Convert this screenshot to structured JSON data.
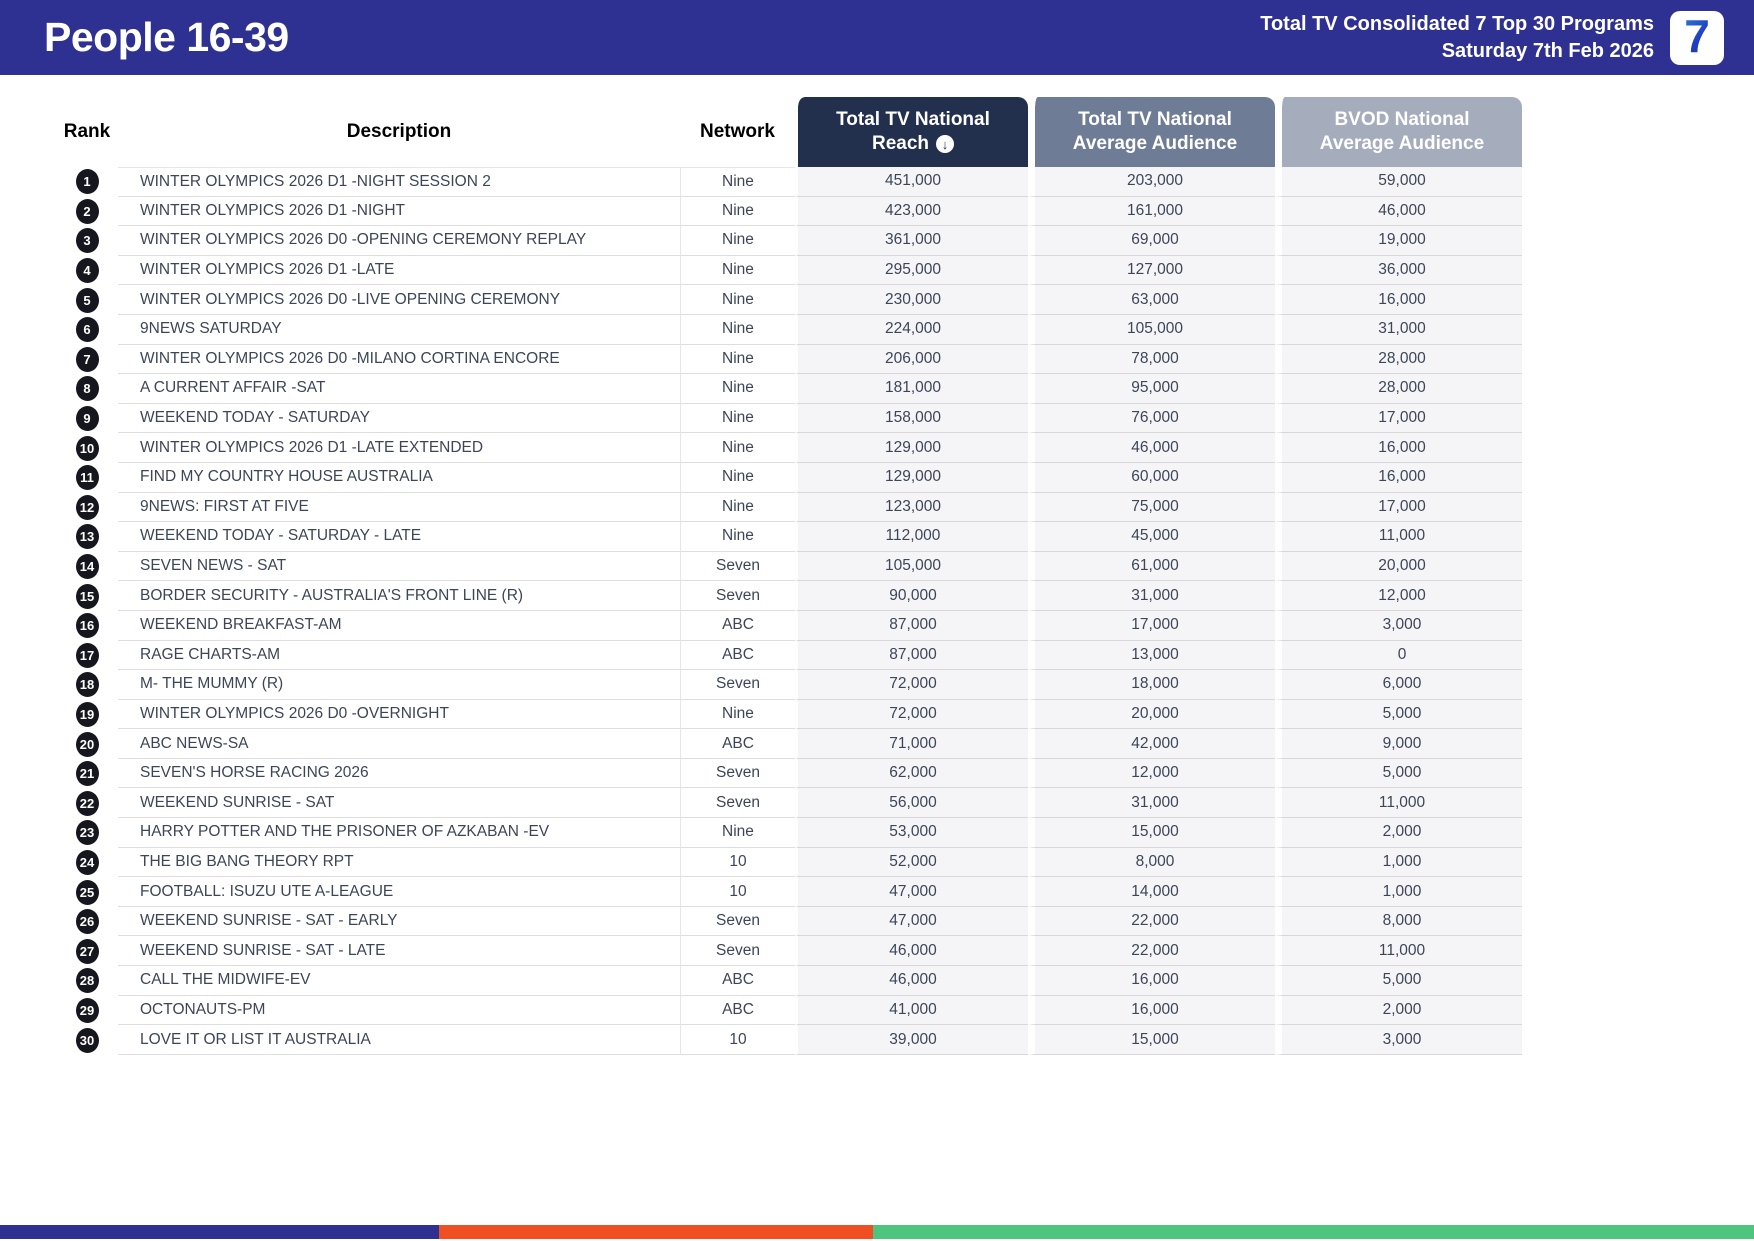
{
  "header": {
    "title": "People 16-39",
    "subtitle_line1": "Total TV Consolidated 7 Top 30 Programs",
    "subtitle_line2": "Saturday 7th Feb 2026",
    "logo_glyph": "7",
    "bg_color": "#2E3192"
  },
  "table": {
    "columns": {
      "rank": "Rank",
      "description": "Description",
      "network": "Network",
      "reach_line1": "Total TV National",
      "reach_line2": "Reach",
      "avg_line1": "Total TV National",
      "avg_line2": "Average Audience",
      "bvod_line1": "BVOD National",
      "bvod_line2": "Average Audience"
    },
    "sort_icon_glyph": "↓",
    "header_colors": {
      "reach": "#22304E",
      "avg": "#6E7C95",
      "bvod": "#A5ADBD"
    },
    "rows": [
      {
        "rank": "1",
        "description": "WINTER OLYMPICS 2026 D1 -NIGHT SESSION 2",
        "network": "Nine",
        "reach": "451,000",
        "avg": "203,000",
        "bvod": "59,000"
      },
      {
        "rank": "2",
        "description": "WINTER OLYMPICS 2026 D1 -NIGHT",
        "network": "Nine",
        "reach": "423,000",
        "avg": "161,000",
        "bvod": "46,000"
      },
      {
        "rank": "3",
        "description": "WINTER OLYMPICS 2026 D0 -OPENING CEREMONY REPLAY",
        "network": "Nine",
        "reach": "361,000",
        "avg": "69,000",
        "bvod": "19,000"
      },
      {
        "rank": "4",
        "description": "WINTER OLYMPICS 2026 D1 -LATE",
        "network": "Nine",
        "reach": "295,000",
        "avg": "127,000",
        "bvod": "36,000"
      },
      {
        "rank": "5",
        "description": "WINTER OLYMPICS 2026 D0 -LIVE OPENING CEREMONY",
        "network": "Nine",
        "reach": "230,000",
        "avg": "63,000",
        "bvod": "16,000"
      },
      {
        "rank": "6",
        "description": "9NEWS SATURDAY",
        "network": "Nine",
        "reach": "224,000",
        "avg": "105,000",
        "bvod": "31,000"
      },
      {
        "rank": "7",
        "description": "WINTER OLYMPICS 2026 D0 -MILANO CORTINA ENCORE",
        "network": "Nine",
        "reach": "206,000",
        "avg": "78,000",
        "bvod": "28,000"
      },
      {
        "rank": "8",
        "description": "A CURRENT AFFAIR -SAT",
        "network": "Nine",
        "reach": "181,000",
        "avg": "95,000",
        "bvod": "28,000"
      },
      {
        "rank": "9",
        "description": "WEEKEND TODAY - SATURDAY",
        "network": "Nine",
        "reach": "158,000",
        "avg": "76,000",
        "bvod": "17,000"
      },
      {
        "rank": "10",
        "description": "WINTER OLYMPICS 2026 D1 -LATE EXTENDED",
        "network": "Nine",
        "reach": "129,000",
        "avg": "46,000",
        "bvod": "16,000"
      },
      {
        "rank": "11",
        "description": "FIND MY COUNTRY HOUSE AUSTRALIA",
        "network": "Nine",
        "reach": "129,000",
        "avg": "60,000",
        "bvod": "16,000"
      },
      {
        "rank": "12",
        "description": "9NEWS: FIRST AT FIVE",
        "network": "Nine",
        "reach": "123,000",
        "avg": "75,000",
        "bvod": "17,000"
      },
      {
        "rank": "13",
        "description": "WEEKEND TODAY - SATURDAY - LATE",
        "network": "Nine",
        "reach": "112,000",
        "avg": "45,000",
        "bvod": "11,000"
      },
      {
        "rank": "14",
        "description": "SEVEN NEWS - SAT",
        "network": "Seven",
        "reach": "105,000",
        "avg": "61,000",
        "bvod": "20,000"
      },
      {
        "rank": "15",
        "description": "BORDER SECURITY - AUSTRALIA'S FRONT LINE (R)",
        "network": "Seven",
        "reach": "90,000",
        "avg": "31,000",
        "bvod": "12,000"
      },
      {
        "rank": "16",
        "description": "WEEKEND BREAKFAST-AM",
        "network": "ABC",
        "reach": "87,000",
        "avg": "17,000",
        "bvod": "3,000"
      },
      {
        "rank": "17",
        "description": "RAGE CHARTS-AM",
        "network": "ABC",
        "reach": "87,000",
        "avg": "13,000",
        "bvod": "0"
      },
      {
        "rank": "18",
        "description": "M- THE MUMMY (R)",
        "network": "Seven",
        "reach": "72,000",
        "avg": "18,000",
        "bvod": "6,000"
      },
      {
        "rank": "19",
        "description": "WINTER OLYMPICS 2026 D0 -OVERNIGHT",
        "network": "Nine",
        "reach": "72,000",
        "avg": "20,000",
        "bvod": "5,000"
      },
      {
        "rank": "20",
        "description": "ABC NEWS-SA",
        "network": "ABC",
        "reach": "71,000",
        "avg": "42,000",
        "bvod": "9,000"
      },
      {
        "rank": "21",
        "description": "SEVEN'S HORSE RACING 2026",
        "network": "Seven",
        "reach": "62,000",
        "avg": "12,000",
        "bvod": "5,000"
      },
      {
        "rank": "22",
        "description": "WEEKEND SUNRISE - SAT",
        "network": "Seven",
        "reach": "56,000",
        "avg": "31,000",
        "bvod": "11,000"
      },
      {
        "rank": "23",
        "description": "HARRY POTTER AND THE PRISONER OF AZKABAN -EV",
        "network": "Nine",
        "reach": "53,000",
        "avg": "15,000",
        "bvod": "2,000"
      },
      {
        "rank": "24",
        "description": "THE BIG BANG THEORY RPT",
        "network": "10",
        "reach": "52,000",
        "avg": "8,000",
        "bvod": "1,000"
      },
      {
        "rank": "25",
        "description": "FOOTBALL: ISUZU UTE A-LEAGUE",
        "network": "10",
        "reach": "47,000",
        "avg": "14,000",
        "bvod": "1,000"
      },
      {
        "rank": "26",
        "description": "WEEKEND SUNRISE - SAT - EARLY",
        "network": "Seven",
        "reach": "47,000",
        "avg": "22,000",
        "bvod": "8,000"
      },
      {
        "rank": "27",
        "description": "WEEKEND SUNRISE - SAT - LATE",
        "network": "Seven",
        "reach": "46,000",
        "avg": "22,000",
        "bvod": "11,000"
      },
      {
        "rank": "28",
        "description": "CALL THE MIDWIFE-EV",
        "network": "ABC",
        "reach": "46,000",
        "avg": "16,000",
        "bvod": "5,000"
      },
      {
        "rank": "29",
        "description": "OCTONAUTS-PM",
        "network": "ABC",
        "reach": "41,000",
        "avg": "16,000",
        "bvod": "2,000"
      },
      {
        "rank": "30",
        "description": "LOVE IT OR LIST IT AUSTRALIA",
        "network": "10",
        "reach": "39,000",
        "avg": "15,000",
        "bvod": "3,000"
      }
    ]
  },
  "footer_bar": {
    "segments": [
      {
        "name": "blue-segment",
        "color": "#2E3192",
        "width_pct": 25.0
      },
      {
        "name": "orange-segment",
        "color": "#F04E23",
        "width_pct": 24.8
      },
      {
        "name": "green-segment",
        "color": "#4EC57E",
        "width_pct": 50.2
      }
    ]
  }
}
